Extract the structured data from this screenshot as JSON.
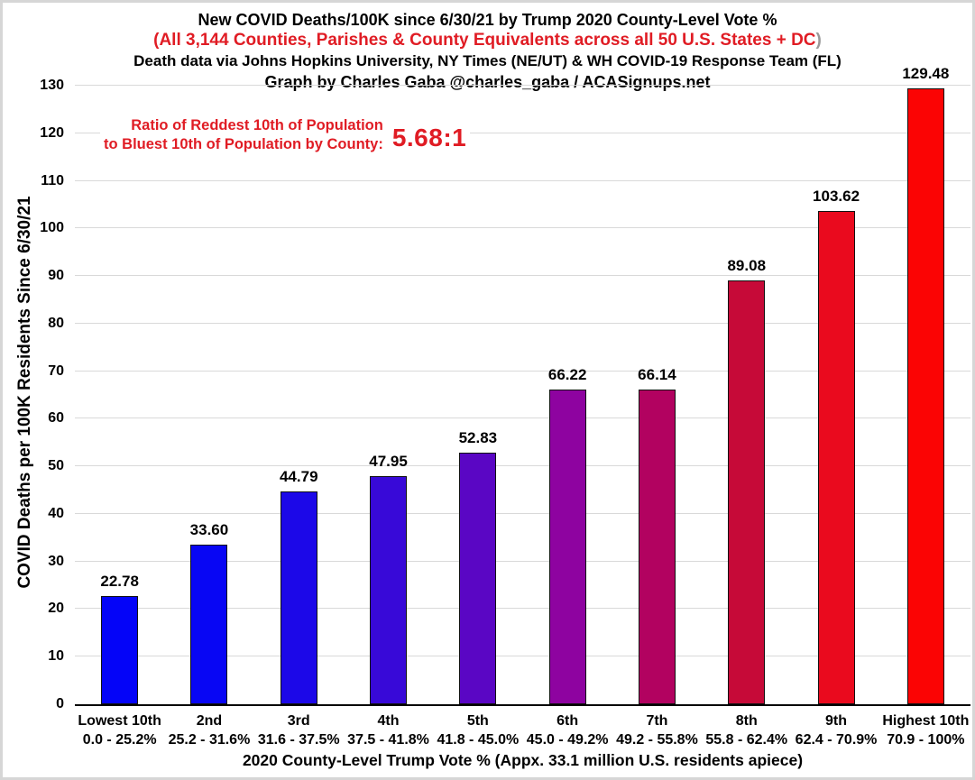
{
  "header": {
    "title": "New COVID Deaths/100K since 6/30/21 by Trump 2020 County-Level Vote %",
    "subtitle": "(All 3,144 Counties, Parishes & County Equivalents across all 50 U.S. States + DC",
    "subtitle_close_paren": ")",
    "data_source": "Death data via Johns Hopkins University, NY Times (NE/UT) & WH COVID-19 Response Team (FL)",
    "credit": "Graph by Charles Gaba @charles_gaba / ACASignups.net"
  },
  "annotation": {
    "line1": "Ratio of Reddest 10th of Population",
    "line2": "to Bluest 10th of Population by County:",
    "ratio_value": "5.68:1"
  },
  "colors": {
    "accent_red": "#e01c24",
    "subtitle_paren_gray": "#999999",
    "grid": "#d9d9d9",
    "axis_line": "#000000",
    "text": "#000000",
    "frame": "#d6d6d6"
  },
  "chart_data": {
    "type": "bar",
    "title": "New COVID Deaths/100K since 6/30/21 by Trump 2020 County-Level Vote %",
    "xlabel": "2020 County-Level Trump Vote % (Appx. 33.1 million U.S. residents apiece)",
    "ylabel": "COVID Deaths per 100K Residents Since 6/30/21",
    "ylim": [
      0,
      130
    ],
    "ytick_step": 10,
    "grid": true,
    "legend": false,
    "categories": [
      "Lowest 10th",
      "2nd",
      "3rd",
      "4th",
      "5th",
      "6th",
      "7th",
      "8th",
      "9th",
      "Highest 10th"
    ],
    "category_ranges": [
      "0.0 - 25.2%",
      "25.2 - 31.6%",
      "31.6 - 37.5%",
      "37.5 - 41.8%",
      "41.8 - 45.0%",
      "45.0 - 49.2%",
      "49.2 - 55.8%",
      "55.8 - 62.4%",
      "62.4 - 70.9%",
      "70.9 - 100%"
    ],
    "values": [
      22.78,
      33.6,
      44.79,
      47.95,
      52.83,
      66.22,
      66.14,
      89.08,
      103.62,
      129.48
    ],
    "value_labels": [
      "22.78",
      "33.60",
      "44.79",
      "47.95",
      "52.83",
      "66.22",
      "66.14",
      "89.08",
      "103.62",
      "129.48"
    ],
    "bar_colors": [
      "#0404f8",
      "#0806f4",
      "#1c08e8",
      "#3809d8",
      "#5a06c4",
      "#8e03a0",
      "#b20260",
      "#c60a38",
      "#ea0a1e",
      "#fb0404"
    ],
    "bar_border_color": "#111111"
  }
}
